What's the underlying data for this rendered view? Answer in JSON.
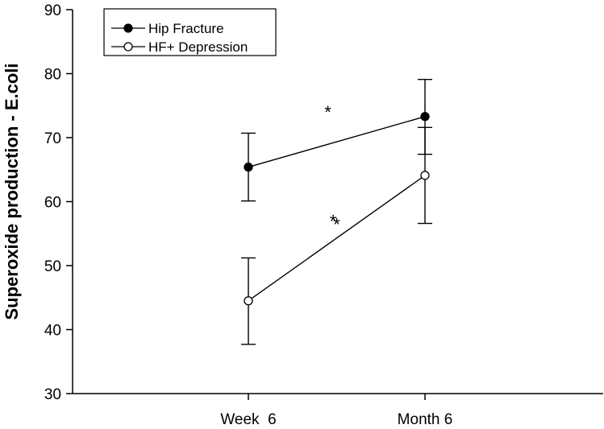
{
  "chart_data": {
    "type": "line",
    "categories": [
      "Week  6",
      "Month 6"
    ],
    "ylabel": "Superoxide production - E.coli",
    "xlabel": "",
    "ylim": [
      30,
      90
    ],
    "yticks": [
      30,
      40,
      50,
      60,
      70,
      80,
      90
    ],
    "grid": false,
    "legend_position": "top-left",
    "series": [
      {
        "name": "Hip Fracture",
        "marker": "filled-circle",
        "values": [
          65.4,
          73.3
        ],
        "error_low": [
          60.1,
          67.4
        ],
        "error_high": [
          70.7,
          79.1
        ]
      },
      {
        "name": "HF+ Depression",
        "marker": "open-circle",
        "values": [
          44.5,
          64.1
        ],
        "error_low": [
          37.7,
          56.6
        ],
        "error_high": [
          51.2,
          71.6
        ]
      }
    ],
    "annotations": [
      {
        "text": "*",
        "x": 0.45,
        "y": 74.5
      },
      {
        "text": "*",
        "x": 0.48,
        "y": 57.5
      },
      {
        "text": "*",
        "x": 0.5,
        "y": 57.0
      }
    ]
  }
}
